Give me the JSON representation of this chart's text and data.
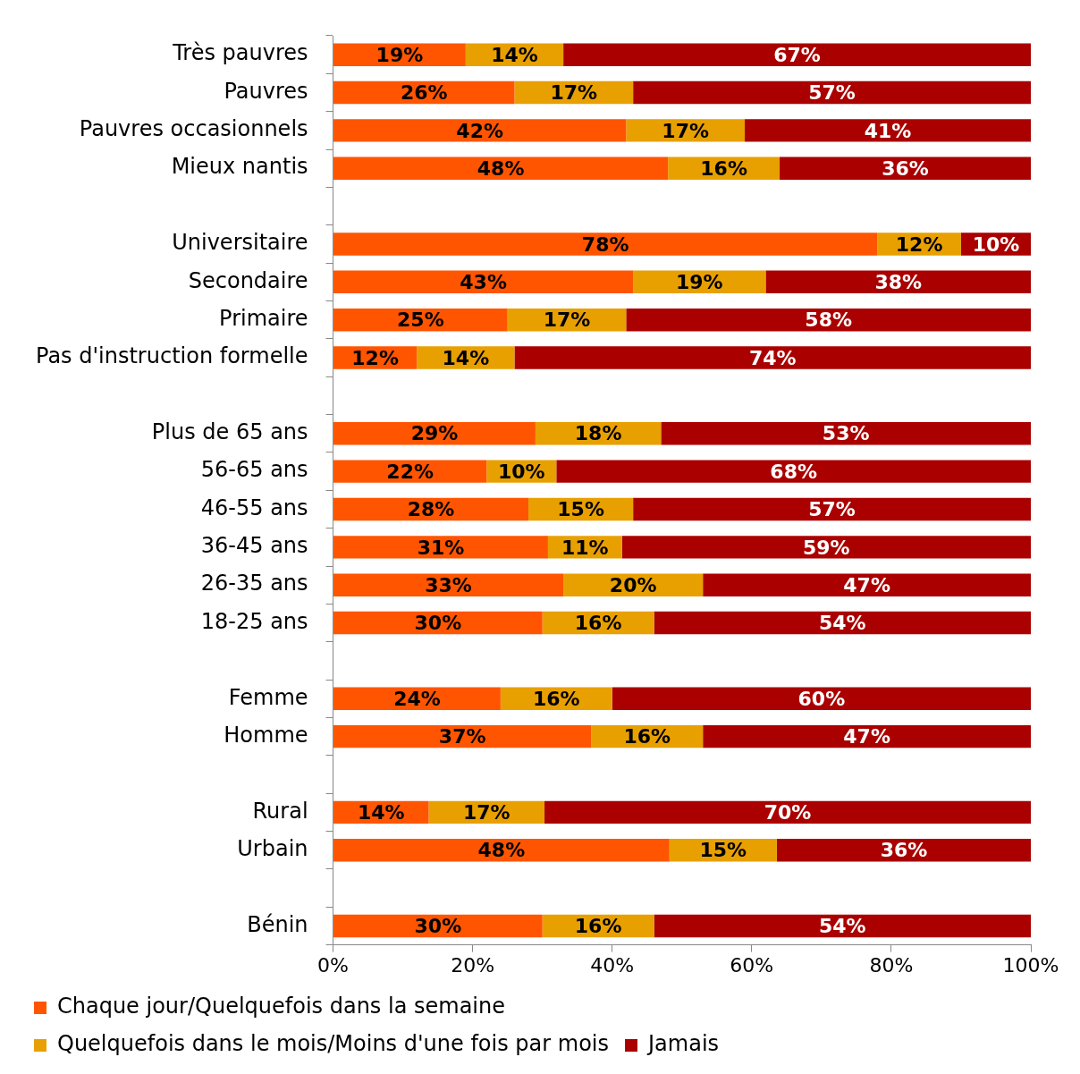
{
  "chart_data": {
    "type": "bar",
    "orientation": "horizontal",
    "stacked": true,
    "legend": "bottom",
    "categories": [
      "Très pauvres",
      "Pauvres",
      "Pauvres occasionnels",
      "Mieux nantis",
      null,
      "Universitaire",
      "Secondaire",
      "Primaire",
      "Pas d'instruction formelle",
      null,
      "Plus de 65 ans",
      "56-65 ans",
      "46-55 ans",
      "36-45 ans",
      "26-35 ans",
      "18-25 ans",
      null,
      "Femme",
      "Homme",
      null,
      "Rural",
      "Urbain",
      null,
      "Bénin"
    ],
    "xlim": [
      0,
      100
    ],
    "xticks": [
      {
        "value": 0,
        "label": "0%"
      },
      {
        "value": 20,
        "label": "20%"
      },
      {
        "value": 40,
        "label": "40%"
      },
      {
        "value": 60,
        "label": "60%"
      },
      {
        "value": 80,
        "label": "80%"
      },
      {
        "value": 100,
        "label": "100%"
      }
    ],
    "series": [
      {
        "name": "Chaque jour/Quelquefois dans la semaine",
        "color": "#ff5500",
        "values": [
          19,
          26,
          42,
          48,
          null,
          78,
          43,
          25,
          12,
          null,
          29,
          22,
          28,
          30.8,
          33,
          30,
          null,
          24,
          37,
          null,
          13.7,
          48.2,
          null,
          30
        ],
        "value_labels": [
          "19%",
          "26%",
          "42%",
          "48%",
          null,
          "78%",
          "43%",
          "25%",
          "12%",
          null,
          "29%",
          "22%",
          "28%",
          "31%",
          "33%",
          "30%",
          null,
          "24%",
          "37%",
          null,
          "14%",
          "48%",
          null,
          "30%"
        ]
      },
      {
        "name": "Quelquefois dans le mois/Moins d'une fois par mois",
        "color": "#e8a000",
        "values": [
          14,
          17,
          17,
          16,
          null,
          12,
          19,
          17,
          14,
          null,
          18,
          10,
          15,
          10.6,
          20,
          16,
          null,
          16,
          16,
          null,
          16.6,
          15.4,
          null,
          16
        ],
        "value_labels": [
          "14%",
          "17%",
          "17%",
          "16%",
          null,
          "12%",
          "19%",
          "17%",
          "14%",
          null,
          "18%",
          "10%",
          "15%",
          "11%",
          "20%",
          "16%",
          null,
          "16%",
          "16%",
          null,
          "17%",
          "15%",
          null,
          "16%"
        ]
      },
      {
        "name": "Jamais",
        "color": "#aa0000",
        "values": [
          67,
          57,
          41,
          36,
          null,
          10,
          38,
          58,
          74,
          null,
          53,
          68,
          57,
          58.6,
          47,
          54,
          null,
          60,
          47,
          null,
          69.7,
          36.4,
          null,
          54
        ],
        "value_labels": [
          "67%",
          "57%",
          "41%",
          "36%",
          null,
          "10%",
          "38%",
          "58%",
          "74%",
          null,
          "53%",
          "68%",
          "57%",
          "59%",
          "47%",
          "54%",
          null,
          "60%",
          "47%",
          null,
          "70%",
          "36%",
          null,
          "54%"
        ]
      }
    ]
  }
}
